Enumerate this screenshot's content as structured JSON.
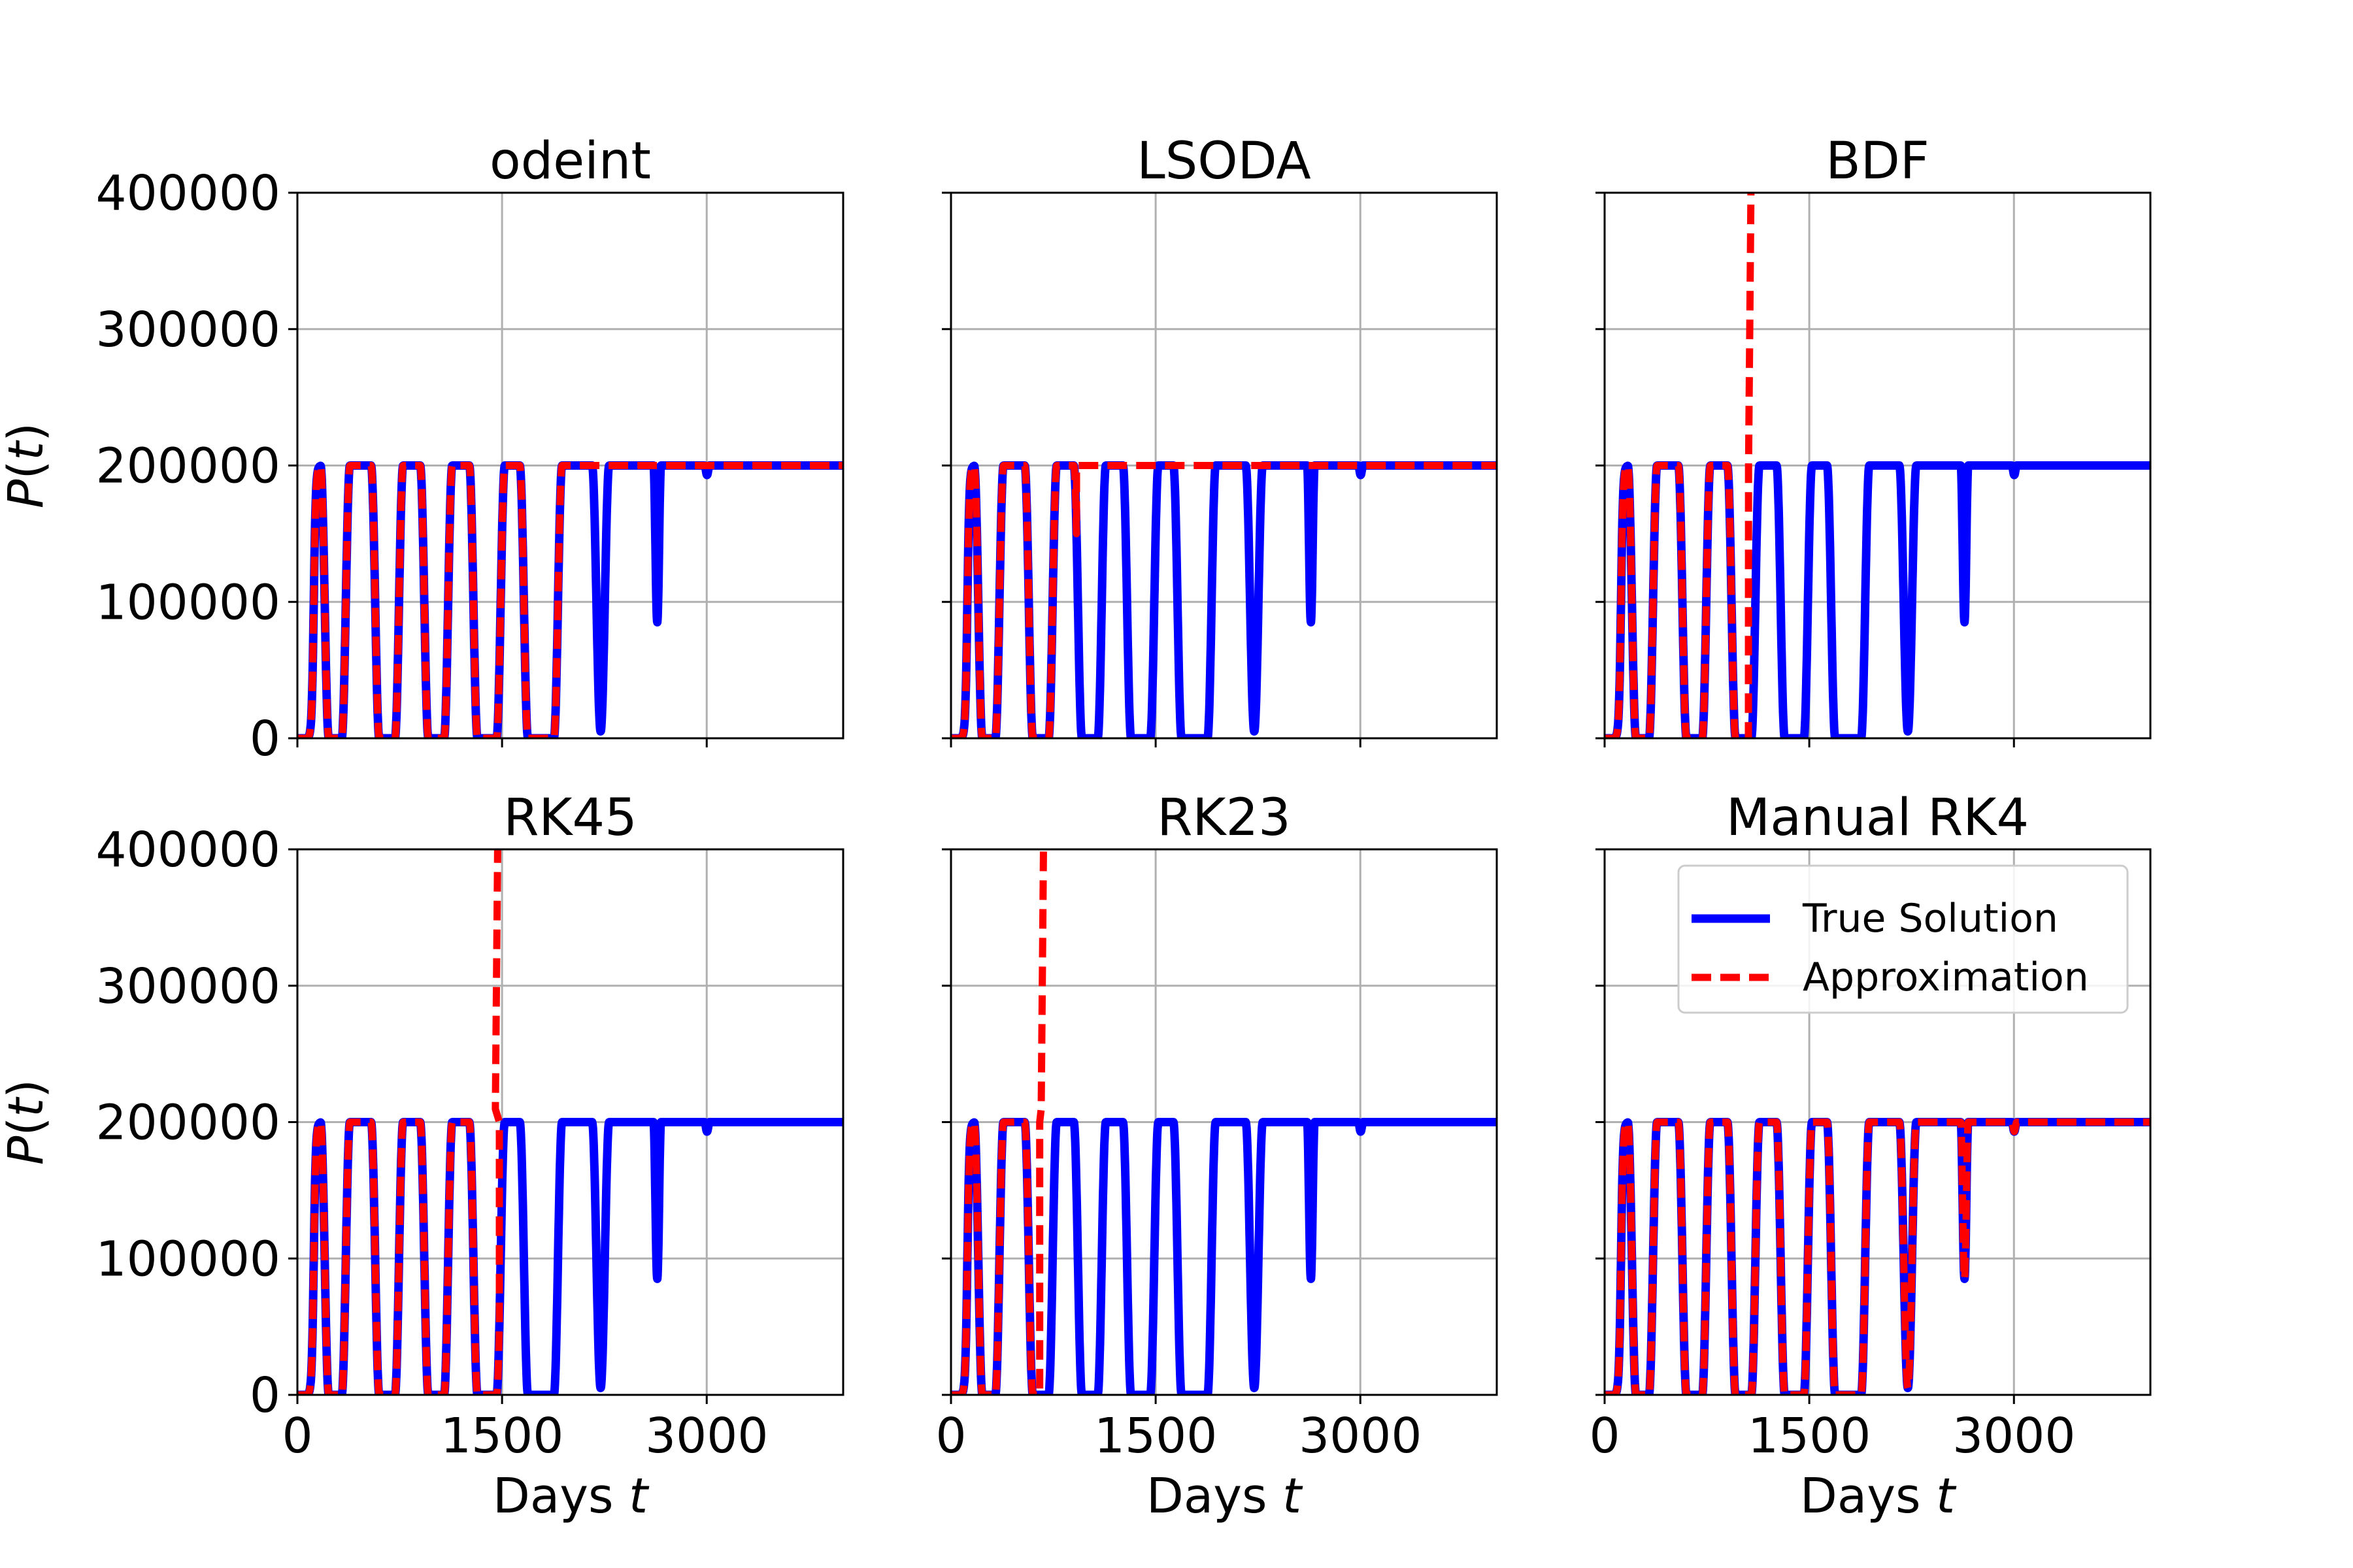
{
  "chart_data": {
    "type": "line",
    "y_axis_label": "P(t)",
    "x_axis_label": "Days t",
    "x_ticks": [
      0,
      1500,
      3000
    ],
    "y_ticks": [
      0,
      100000,
      200000,
      300000,
      400000
    ],
    "xlim": [
      0,
      4000
    ],
    "ylim": [
      0,
      400000
    ],
    "colors": {
      "true_solution": "#0000ff",
      "approximation": "#ff0000"
    },
    "legend": {
      "location": "upper-right",
      "panel": 5,
      "entries": [
        "True Solution",
        "Approximation"
      ]
    },
    "true_solution": {
      "baseline": 0,
      "plateau": 200000,
      "pulses": [
        {
          "start": 200,
          "end": 355,
          "min": 0
        },
        {
          "start": 570,
          "end": 745,
          "min": 0
        },
        {
          "start": 930,
          "end": 1105,
          "min": 0
        },
        {
          "start": 1290,
          "end": 1490,
          "min": 0
        },
        {
          "start": 1660,
          "end": 1910,
          "min": 0
        },
        {
          "start": 2160,
          "end": 2285,
          "min": 5000
        },
        {
          "start": 2610,
          "end": 2665,
          "min": 85000
        },
        {
          "start": 2985,
          "end": 3020,
          "min": 193000
        }
      ]
    },
    "panels": [
      {
        "title": "odeint",
        "approximation": {
          "type": "partial",
          "until": 2000,
          "then": "hold",
          "hold_value": 200000
        }
      },
      {
        "title": "LSODA",
        "approximation": {
          "type": "partial",
          "until": 920,
          "then": "hold",
          "hold_value": 200000
        }
      },
      {
        "title": "BDF",
        "approximation": {
          "type": "partial",
          "until": 1055,
          "then": "blowup",
          "blowup_at": 1075
        }
      },
      {
        "title": "RK45",
        "approximation": {
          "type": "partial",
          "until": 1480,
          "then": "blowup",
          "blowup_at": 1470
        }
      },
      {
        "title": "RK23",
        "approximation": {
          "type": "partial",
          "until": 650,
          "then": "blowup",
          "blowup_at": 680
        }
      },
      {
        "title": "Manual RK4",
        "approximation": {
          "type": "full"
        }
      }
    ]
  }
}
